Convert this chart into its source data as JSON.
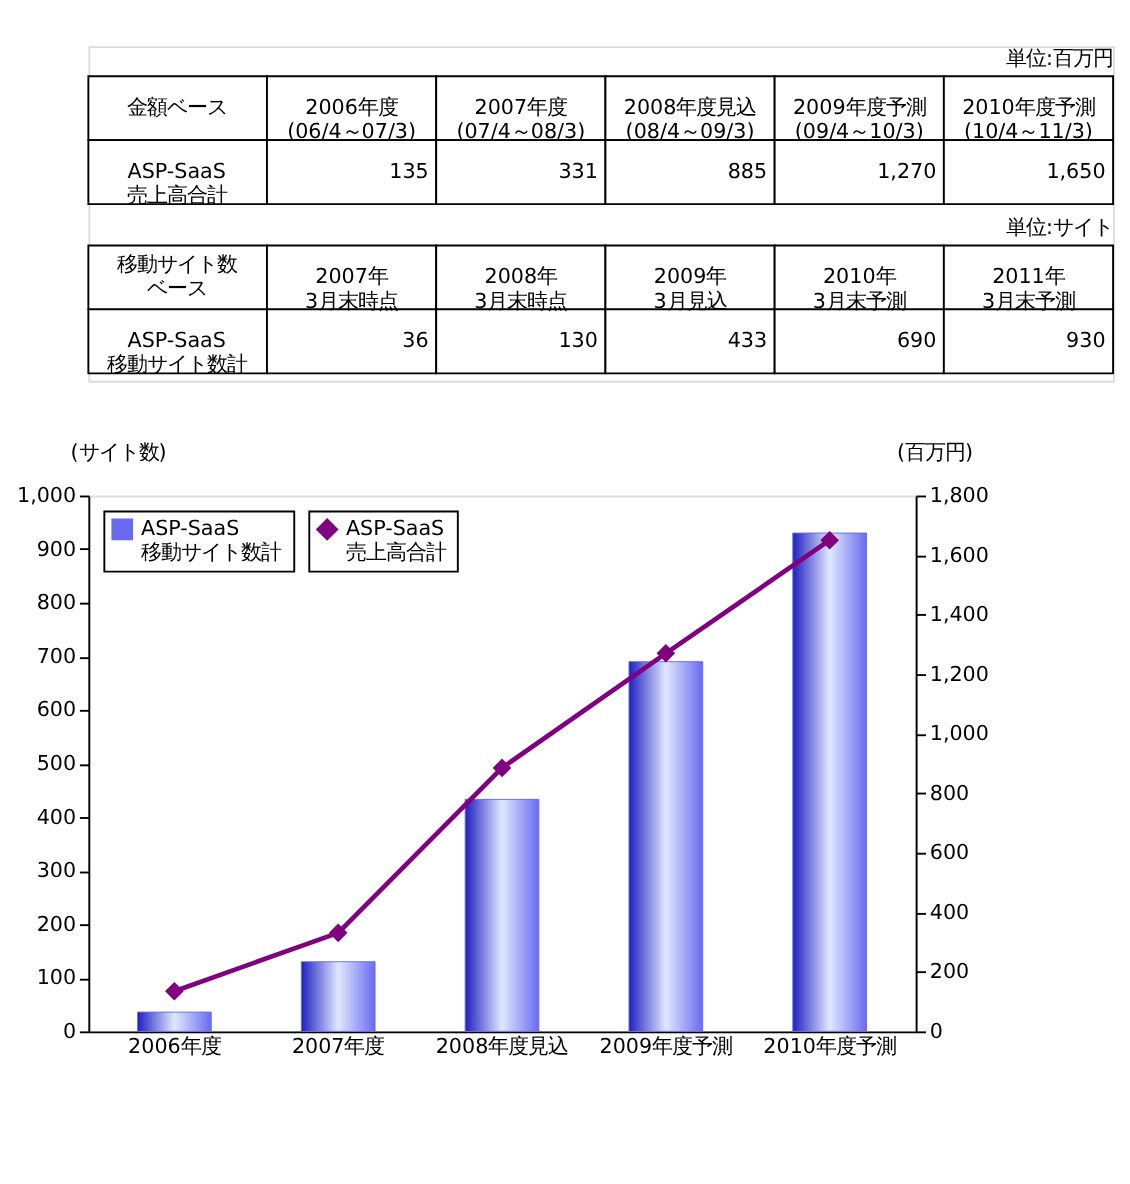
{
  "chart_data": {
    "type": "bar",
    "categories": [
      "2006年度",
      "2007年度",
      "2008年度見込",
      "2009年度予測",
      "2010年度予測"
    ],
    "series": [
      {
        "name": "ASP-SaaS 移動サイト数計",
        "color": "#6a6af0",
        "values": [
          36,
          130,
          433,
          690,
          930
        ]
      },
      {
        "name": "ASP-SaaS 売上高合計",
        "type": "line",
        "axis": "y2",
        "color": "#800080",
        "marker": "diamond",
        "values": [
          135,
          331,
          885,
          1270,
          1650
        ]
      }
    ],
    "ylabel": "(サイト数)",
    "y2label": "(百万円)",
    "ylim": [
      0,
      1000
    ],
    "yticks": [
      0,
      100,
      200,
      300,
      400,
      500,
      600,
      700,
      800,
      {
        "value": 900,
        "label": "900"
      },
      {
        "value": 1000,
        "label": "1,000"
      }
    ],
    "y2lim": [
      0,
      1800
    ],
    "y2ticks": [
      0,
      200,
      400,
      600,
      800,
      {
        "value": 1000,
        "label": "1,000"
      },
      {
        "value": 1200,
        "label": "1,200"
      },
      {
        "value": 1400,
        "label": "1,400"
      },
      {
        "value": 1600,
        "label": "1,600"
      },
      {
        "value": 1800,
        "label": "1,800"
      }
    ],
    "grid": false,
    "legend": "top left",
    "annotations": [
      "単位:百万円",
      "金額ベース",
      "2006年度\n(06/4～07/3)",
      "2007年度\n(07/4～08/3)",
      "2008年度見込\n(08/4～09/3)",
      "2009年度予測\n(09/4～10/3)",
      "2010年度予測\n(10/4～11/3)",
      "ASP-SaaS\n売上高合計",
      "135",
      "331",
      "885",
      "1,270",
      "1,650",
      "単位:サイト",
      "移動サイト数",
      "ベース",
      "2007年\n3月末時点",
      "2008年\n3月末時点",
      "2009年\n3月見込",
      "2010年\n3月末予測",
      "2011年\n3月末予測",
      "ASP-SaaS\n移動サイト数計",
      "36",
      "130",
      "433",
      "690",
      "930"
    ]
  }
}
